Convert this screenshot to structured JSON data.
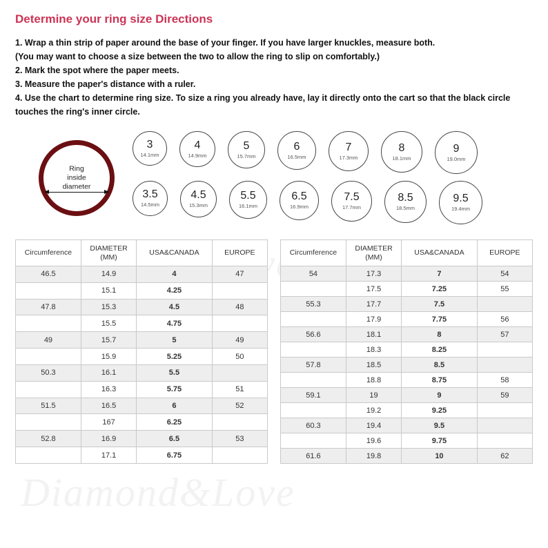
{
  "title": "Determine your ring size Directions",
  "directions": [
    "1. Wrap a thin strip of paper around the base of your finger. If you have larger knuckles, measure both.",
    "(You may want to choose a size between the two to allow the ring to slip on comfortably.)",
    "2. Mark the spot where the paper meets.",
    "3. Measure the paper's distance with a ruler.",
    "4. Use the chart to determine ring size. To size a ring you already have, lay it directly onto the cart so that the black circle touches the ring's inner circle."
  ],
  "ring_label_line1": "Ring",
  "ring_label_line2": "inside diameter",
  "ring_color": "#6b0f13",
  "circles_row1": [
    {
      "size": "3",
      "mm": "14.1mm",
      "d": 50
    },
    {
      "size": "4",
      "mm": "14.9mm",
      "d": 52
    },
    {
      "size": "5",
      "mm": "15.7mm",
      "d": 54
    },
    {
      "size": "6",
      "mm": "16.5mm",
      "d": 56
    },
    {
      "size": "7",
      "mm": "17.3mm",
      "d": 58
    },
    {
      "size": "8",
      "mm": "18.1mm",
      "d": 60
    },
    {
      "size": "9",
      "mm": "19.0mm",
      "d": 62
    }
  ],
  "circles_row2": [
    {
      "size": "3.5",
      "mm": "14.5mm",
      "d": 51
    },
    {
      "size": "4.5",
      "mm": "15.3mm",
      "d": 53
    },
    {
      "size": "5.5",
      "mm": "16.1mm",
      "d": 55
    },
    {
      "size": "6.5",
      "mm": "16.9mm",
      "d": 57
    },
    {
      "size": "7.5",
      "mm": "17.7mm",
      "d": 59
    },
    {
      "size": "8.5",
      "mm": "18.5mm",
      "d": 61
    },
    {
      "size": "9.5",
      "mm": "19.4mm",
      "d": 63
    }
  ],
  "table_headers": [
    "Circumference",
    "DIAMETER\n(MM)",
    "USA&CANADA",
    "EUROPE"
  ],
  "table_col_widths": [
    "26%",
    "22%",
    "30%",
    "22%"
  ],
  "table_left": [
    {
      "c": "46.5",
      "d": "14.9",
      "u": "4",
      "e": "47",
      "shade": true
    },
    {
      "c": "",
      "d": "15.1",
      "u": "4.25",
      "e": "",
      "shade": false
    },
    {
      "c": "47.8",
      "d": "15.3",
      "u": "4.5",
      "e": "48",
      "shade": true
    },
    {
      "c": "",
      "d": "15.5",
      "u": "4.75",
      "e": "",
      "shade": false
    },
    {
      "c": "49",
      "d": "15.7",
      "u": "5",
      "e": "49",
      "shade": true
    },
    {
      "c": "",
      "d": "15.9",
      "u": "5.25",
      "e": "50",
      "shade": false
    },
    {
      "c": "50.3",
      "d": "16.1",
      "u": "5.5",
      "e": "",
      "shade": true
    },
    {
      "c": "",
      "d": "16.3",
      "u": "5.75",
      "e": "51",
      "shade": false
    },
    {
      "c": "51.5",
      "d": "16.5",
      "u": "6",
      "e": "52",
      "shade": true
    },
    {
      "c": "",
      "d": "167",
      "u": "6.25",
      "e": "",
      "shade": false
    },
    {
      "c": "52.8",
      "d": "16.9",
      "u": "6.5",
      "e": "53",
      "shade": true
    },
    {
      "c": "",
      "d": "17.1",
      "u": "6.75",
      "e": "",
      "shade": false
    }
  ],
  "table_right": [
    {
      "c": "54",
      "d": "17.3",
      "u": "7",
      "e": "54",
      "shade": true
    },
    {
      "c": "",
      "d": "17.5",
      "u": "7.25",
      "e": "55",
      "shade": false
    },
    {
      "c": "55.3",
      "d": "17.7",
      "u": "7.5",
      "e": "",
      "shade": true
    },
    {
      "c": "",
      "d": "17.9",
      "u": "7.75",
      "e": "56",
      "shade": false
    },
    {
      "c": "56.6",
      "d": "18.1",
      "u": "8",
      "e": "57",
      "shade": true
    },
    {
      "c": "",
      "d": "18.3",
      "u": "8.25",
      "e": "",
      "shade": false
    },
    {
      "c": "57.8",
      "d": "18.5",
      "u": "8.5",
      "e": "",
      "shade": true
    },
    {
      "c": "",
      "d": "18.8",
      "u": "8.75",
      "e": "58",
      "shade": false
    },
    {
      "c": "59.1",
      "d": "19",
      "u": "9",
      "e": "59",
      "shade": true
    },
    {
      "c": "",
      "d": "19.2",
      "u": "9.25",
      "e": "",
      "shade": false
    },
    {
      "c": "60.3",
      "d": "19.4",
      "u": "9.5",
      "e": "",
      "shade": true
    },
    {
      "c": "",
      "d": "19.6",
      "u": "9.75",
      "e": "",
      "shade": false
    },
    {
      "c": "61.6",
      "d": "19.8",
      "u": "10",
      "e": "62",
      "shade": true
    }
  ],
  "watermark_text": "Diamond&Love"
}
